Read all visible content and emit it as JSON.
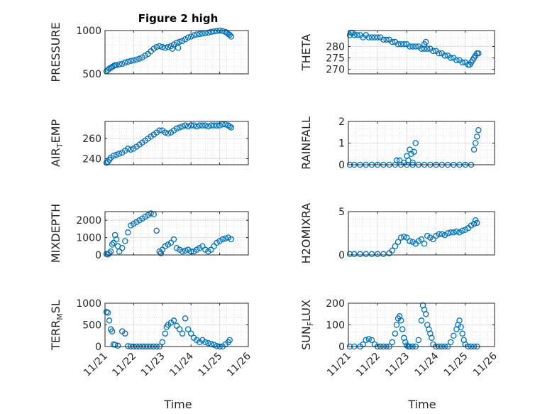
{
  "figure": {
    "title": "Figure 2 high",
    "xlabel": "Time",
    "x_ticks": [
      "11/21",
      "11/22",
      "11/23",
      "11/24",
      "11/25",
      "11/26"
    ],
    "marker_color": "#0072BD"
  },
  "chart_data": [
    {
      "type": "scatter",
      "ylabel": "PRESSURE",
      "ylabel_sub": "",
      "ylabel_rest": "",
      "xlim": [
        0,
        5
      ],
      "ylim": [
        500,
        1000
      ],
      "yticks": [
        500,
        1000
      ],
      "grid": true,
      "x": [
        0.05,
        0.1,
        0.15,
        0.2,
        0.25,
        0.3,
        0.35,
        0.4,
        0.5,
        0.6,
        0.7,
        0.8,
        0.9,
        1.0,
        1.1,
        1.2,
        1.3,
        1.4,
        1.5,
        1.6,
        1.7,
        1.8,
        1.9,
        2.0,
        2.1,
        2.2,
        2.3,
        2.4,
        2.5,
        2.6,
        2.7,
        2.8,
        2.9,
        3.0,
        3.1,
        3.2,
        3.3,
        3.4,
        3.5,
        3.6,
        3.7,
        3.8,
        3.9,
        4.0,
        4.1,
        4.2,
        4.25,
        4.3,
        4.35,
        4.4,
        2.35,
        2.55
      ],
      "y": [
        530,
        545,
        560,
        570,
        580,
        590,
        600,
        600,
        610,
        615,
        630,
        640,
        650,
        655,
        665,
        675,
        690,
        710,
        730,
        760,
        790,
        810,
        820,
        810,
        800,
        810,
        820,
        840,
        860,
        870,
        880,
        900,
        920,
        930,
        945,
        955,
        960,
        965,
        970,
        975,
        985,
        990,
        995,
        1000,
        995,
        985,
        975,
        960,
        950,
        930,
        790,
        800
      ]
    },
    {
      "type": "scatter",
      "ylabel": "THETA",
      "ylabel_sub": "",
      "ylabel_rest": "",
      "xlim": [
        0,
        5
      ],
      "ylim": [
        268,
        287
      ],
      "yticks": [
        270,
        275,
        280
      ],
      "grid": true,
      "x": [
        0.05,
        0.1,
        0.15,
        0.2,
        0.3,
        0.4,
        0.5,
        0.6,
        0.7,
        0.8,
        0.9,
        1.0,
        1.1,
        1.2,
        1.3,
        1.4,
        1.5,
        1.6,
        1.7,
        1.8,
        1.9,
        2.0,
        2.1,
        2.2,
        2.3,
        2.4,
        2.5,
        2.6,
        2.7,
        2.8,
        2.9,
        3.0,
        3.1,
        3.2,
        3.3,
        3.4,
        3.5,
        3.6,
        3.7,
        3.8,
        3.9,
        4.0,
        4.1,
        4.15,
        4.2,
        4.25,
        4.3,
        4.35,
        4.4,
        4.45,
        2.6,
        2.65
      ],
      "y": [
        285,
        286,
        286,
        285,
        285,
        285,
        284,
        285,
        284,
        284,
        284,
        284,
        284,
        283,
        283,
        283,
        282,
        282,
        281,
        281,
        281,
        281,
        280,
        280,
        280,
        280,
        279,
        279,
        279,
        279,
        278,
        278,
        277,
        277,
        276,
        276,
        275,
        275,
        274,
        274,
        273,
        273,
        272,
        272,
        273,
        274,
        275,
        276,
        277,
        277,
        281,
        282
      ]
    },
    {
      "type": "scatter",
      "ylabel": "AIR",
      "ylabel_sub": "T",
      "ylabel_rest": "EMP",
      "xlim": [
        0,
        5
      ],
      "ylim": [
        234,
        277
      ],
      "yticks": [
        240,
        260
      ],
      "grid": true,
      "x": [
        0.05,
        0.1,
        0.15,
        0.2,
        0.3,
        0.4,
        0.5,
        0.6,
        0.7,
        0.8,
        0.9,
        1.0,
        1.1,
        1.2,
        1.3,
        1.4,
        1.5,
        1.6,
        1.7,
        1.8,
        1.9,
        2.0,
        2.1,
        2.2,
        2.3,
        2.4,
        2.5,
        2.6,
        2.7,
        2.8,
        2.9,
        3.0,
        3.1,
        3.2,
        3.3,
        3.4,
        3.5,
        3.6,
        3.7,
        3.8,
        3.9,
        4.0,
        4.1,
        4.2,
        4.3,
        4.35,
        4.4
      ],
      "y": [
        236,
        237,
        239,
        241,
        243,
        244,
        245,
        246,
        248,
        250,
        249,
        250,
        252,
        254,
        256,
        258,
        260,
        262,
        264,
        266,
        268,
        268,
        266,
        265,
        266,
        268,
        270,
        271,
        272,
        273,
        272,
        273,
        273,
        272,
        273,
        273,
        273,
        272,
        273,
        273,
        273,
        273,
        274,
        274,
        273,
        272,
        271
      ]
    },
    {
      "type": "scatter",
      "ylabel": "RAINFALL",
      "ylabel_sub": "",
      "ylabel_rest": "",
      "xlim": [
        0,
        5
      ],
      "ylim": [
        0,
        2
      ],
      "yticks": [
        0,
        1,
        2
      ],
      "grid": true,
      "x": [
        0.05,
        0.2,
        0.4,
        0.6,
        0.8,
        1.0,
        1.2,
        1.4,
        1.6,
        1.8,
        2.0,
        2.2,
        2.4,
        2.6,
        2.8,
        3.0,
        3.2,
        3.4,
        3.6,
        3.8,
        4.0,
        4.2,
        1.65,
        1.75,
        1.9,
        2.0,
        2.05,
        2.1,
        2.15,
        2.2,
        2.25,
        2.3,
        4.3,
        4.35,
        4.4,
        4.45
      ],
      "y": [
        0,
        0,
        0,
        0,
        0,
        0,
        0,
        0,
        0,
        0,
        0,
        0,
        0,
        0,
        0,
        0,
        0,
        0,
        0,
        0,
        0,
        0,
        0.2,
        0.2,
        0.1,
        0.4,
        0.2,
        0.7,
        0.5,
        0.1,
        0.6,
        1.0,
        0.7,
        1.0,
        1.3,
        1.6
      ]
    },
    {
      "type": "scatter",
      "ylabel": "MIXDEPTH",
      "ylabel_sub": "",
      "ylabel_rest": "",
      "xlim": [
        0,
        5
      ],
      "ylim": [
        0,
        2500
      ],
      "yticks": [
        0,
        1000,
        2000
      ],
      "grid": true,
      "x": [
        0.05,
        0.1,
        0.15,
        0.2,
        0.25,
        0.3,
        0.35,
        0.4,
        0.45,
        0.5,
        0.6,
        0.7,
        0.8,
        0.9,
        1.0,
        1.1,
        1.2,
        1.3,
        1.4,
        1.5,
        1.6,
        1.7,
        1.8,
        1.9,
        1.95,
        2.0,
        2.1,
        2.2,
        2.3,
        2.4,
        2.5,
        2.6,
        2.7,
        2.8,
        2.9,
        3.0,
        3.1,
        3.2,
        3.3,
        3.4,
        3.5,
        3.6,
        3.7,
        3.8,
        3.9,
        4.0,
        4.1,
        4.2,
        4.3,
        4.4
      ],
      "y": [
        50,
        30,
        100,
        200,
        600,
        700,
        1150,
        900,
        500,
        200,
        400,
        800,
        1300,
        1700,
        1800,
        1900,
        2000,
        2100,
        2200,
        2300,
        2400,
        2350,
        1400,
        200,
        100,
        300,
        500,
        600,
        700,
        900,
        400,
        300,
        200,
        250,
        300,
        200,
        200,
        300,
        400,
        500,
        300,
        200,
        300,
        500,
        700,
        800,
        900,
        950,
        1000,
        900
      ]
    },
    {
      "type": "scatter",
      "ylabel": "H2OMIXRA",
      "ylabel_sub": "",
      "ylabel_rest": "",
      "xlim": [
        0,
        5
      ],
      "ylim": [
        0,
        5
      ],
      "yticks": [
        0,
        5
      ],
      "grid": true,
      "x": [
        0.05,
        0.2,
        0.4,
        0.6,
        0.8,
        1.0,
        1.2,
        1.4,
        1.5,
        1.6,
        1.7,
        1.8,
        1.9,
        2.0,
        2.1,
        2.2,
        2.3,
        2.4,
        2.5,
        2.6,
        2.7,
        2.8,
        2.9,
        3.0,
        3.1,
        3.2,
        3.3,
        3.4,
        3.5,
        3.6,
        3.7,
        3.8,
        3.9,
        4.0,
        4.1,
        4.2,
        4.3,
        4.35,
        4.4
      ],
      "y": [
        0.1,
        0.1,
        0.1,
        0.1,
        0.1,
        0.1,
        0.1,
        0.2,
        0.5,
        1.0,
        1.5,
        2.0,
        2.1,
        2.0,
        1.6,
        1.5,
        1.3,
        1.6,
        1.8,
        1.3,
        2.2,
        2.0,
        1.8,
        2.2,
        2.4,
        2.4,
        2.3,
        2.5,
        2.6,
        2.6,
        2.7,
        2.6,
        2.8,
        2.9,
        3.1,
        3.4,
        3.6,
        4.0,
        3.7
      ]
    },
    {
      "type": "scatter",
      "ylabel": "TERR",
      "ylabel_sub": "M",
      "ylabel_rest": "SL",
      "xlim": [
        0,
        5
      ],
      "ylim": [
        0,
        1000
      ],
      "yticks": [
        0,
        500,
        1000
      ],
      "grid": true,
      "x": [
        0.05,
        0.1,
        0.15,
        0.2,
        0.25,
        0.3,
        0.35,
        0.45,
        0.6,
        0.7,
        0.8,
        0.9,
        1.0,
        1.1,
        1.2,
        1.3,
        1.4,
        1.5,
        1.6,
        1.7,
        1.8,
        1.9,
        2.0,
        2.1,
        2.15,
        2.2,
        2.3,
        2.4,
        2.5,
        2.6,
        2.7,
        2.8,
        2.9,
        3.0,
        3.1,
        3.2,
        3.3,
        3.4,
        3.5,
        3.6,
        3.7,
        3.8,
        3.9,
        4.0,
        4.1,
        4.2,
        4.3,
        4.35
      ],
      "y": [
        800,
        780,
        600,
        400,
        350,
        50,
        40,
        20,
        350,
        300,
        10,
        0,
        0,
        0,
        0,
        0,
        0,
        0,
        0,
        0,
        0,
        0,
        100,
        300,
        450,
        500,
        550,
        600,
        480,
        400,
        300,
        650,
        400,
        300,
        200,
        150,
        100,
        150,
        100,
        80,
        60,
        40,
        10,
        0,
        0,
        50,
        100,
        150
      ]
    },
    {
      "type": "scatter",
      "ylabel": "SUN",
      "ylabel_sub": "F",
      "ylabel_rest": "LUX",
      "xlim": [
        0,
        5
      ],
      "ylim": [
        0,
        200
      ],
      "yticks": [
        0,
        100,
        200
      ],
      "grid": true,
      "x": [
        0.05,
        0.2,
        0.4,
        0.5,
        0.6,
        0.7,
        0.8,
        0.9,
        1.0,
        1.1,
        1.2,
        1.3,
        1.4,
        1.5,
        1.6,
        1.65,
        1.7,
        1.75,
        1.8,
        1.85,
        1.9,
        1.95,
        2.0,
        2.05,
        2.1,
        2.2,
        2.3,
        2.4,
        2.5,
        2.55,
        2.6,
        2.65,
        2.7,
        2.75,
        2.8,
        2.85,
        2.9,
        3.0,
        3.1,
        3.2,
        3.3,
        3.4,
        3.5,
        3.6,
        3.7,
        3.75,
        3.8,
        3.85,
        3.9,
        3.95,
        4.0,
        4.1,
        4.2,
        4.3,
        4.4
      ],
      "y": [
        0,
        0,
        0,
        10,
        30,
        35,
        30,
        10,
        0,
        0,
        0,
        0,
        0,
        20,
        60,
        100,
        130,
        140,
        120,
        80,
        40,
        20,
        5,
        0,
        0,
        0,
        0,
        30,
        120,
        190,
        170,
        150,
        100,
        80,
        60,
        40,
        10,
        0,
        0,
        0,
        0,
        0,
        20,
        50,
        80,
        100,
        120,
        90,
        60,
        30,
        10,
        0,
        0,
        0,
        0
      ]
    }
  ]
}
